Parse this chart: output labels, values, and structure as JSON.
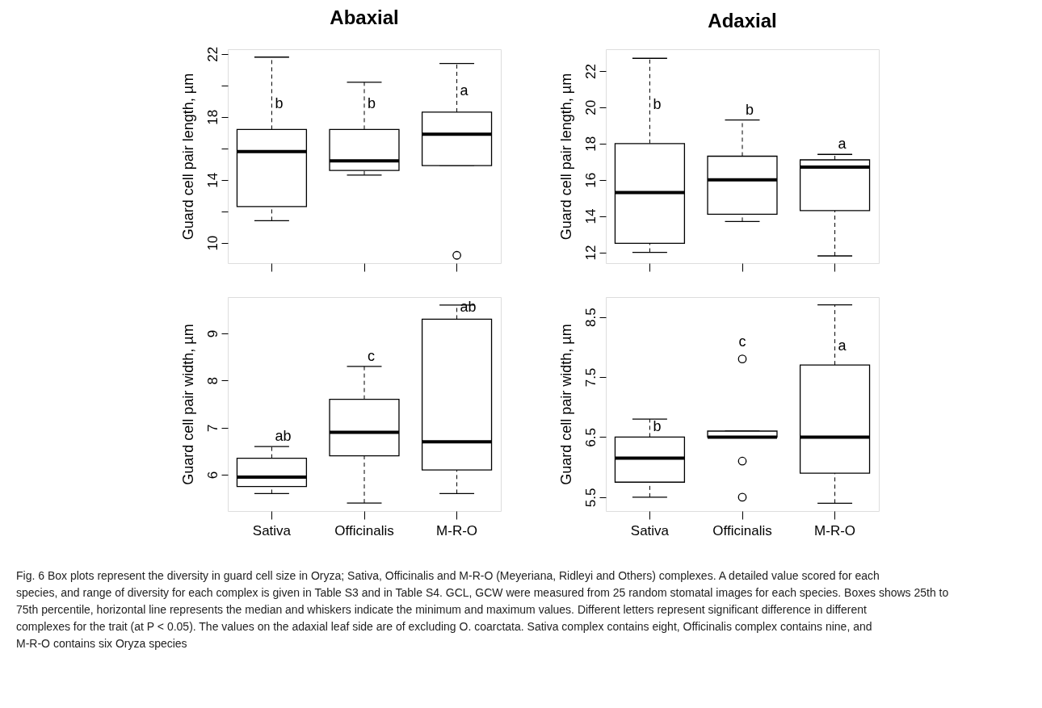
{
  "chart_data": [
    {
      "type": "box",
      "title": "Abaxial",
      "ylabel": "Guard cell pair length, µm",
      "categories": [
        "Sativa",
        "Officinalis",
        "M-R-O"
      ],
      "tick_labels": "y",
      "ylim": [
        8.7,
        22.3
      ],
      "yticks": [
        10,
        {
          "value": 12,
          "label": null
        },
        14,
        {
          "value": 16,
          "label": null
        },
        18,
        {
          "value": 20,
          "label": null
        },
        22
      ],
      "boxes": [
        {
          "low": 11.4,
          "q1": 12.3,
          "median": 15.8,
          "q3": 17.2,
          "high": 21.8
        },
        {
          "low": 14.3,
          "q1": 14.6,
          "median": 15.2,
          "q3": 17.2,
          "high": 20.2
        },
        {
          "low": 14.9,
          "q1": 14.9,
          "median": 16.9,
          "q3": 18.3,
          "high": 21.4,
          "outliers": [
            9.2
          ]
        }
      ],
      "annotations": [
        {
          "text": "b",
          "x": "Sativa",
          "y": 18.2
        },
        {
          "text": "b",
          "x": "Officinalis",
          "y": 18.2
        },
        {
          "text": "a",
          "x": "M-R-O",
          "y": 19.0
        }
      ]
    },
    {
      "type": "box",
      "title": "Adaxial",
      "ylabel": "Guard cell pair length, µm",
      "categories": [
        "Sativa",
        "Officinalis",
        "M-R-O"
      ],
      "tick_labels": "y",
      "ylim": [
        11.4,
        23.2
      ],
      "yticks": [
        12,
        14,
        16,
        18,
        20,
        22
      ],
      "boxes": [
        {
          "low": 12.0,
          "q1": 12.5,
          "median": 15.3,
          "q3": 18.0,
          "high": 22.7
        },
        {
          "low": 13.7,
          "q1": 14.1,
          "median": 16.0,
          "q3": 17.3,
          "high": 19.3
        },
        {
          "low": 11.8,
          "q1": 14.3,
          "median": 16.7,
          "q3": 17.1,
          "high": 17.4
        }
      ],
      "annotations": [
        {
          "text": "b",
          "x": "Sativa",
          "y": 19.6
        },
        {
          "text": "b",
          "x": "Officinalis",
          "y": 19.3
        },
        {
          "text": "a",
          "x": "M-R-O",
          "y": 17.4
        }
      ]
    },
    {
      "type": "box",
      "ylabel": "Guard cell pair width, µm",
      "categories": [
        "Sativa",
        "Officinalis",
        "M-R-O"
      ],
      "ylim": [
        5.23,
        9.77
      ],
      "yticks": [
        6,
        7,
        8,
        9
      ],
      "boxes": [
        {
          "low": 5.6,
          "q1": 5.75,
          "median": 5.95,
          "q3": 6.35,
          "high": 6.6
        },
        {
          "low": 5.4,
          "q1": 6.4,
          "median": 6.9,
          "q3": 7.6,
          "high": 8.3
        },
        {
          "low": 5.6,
          "q1": 6.1,
          "median": 6.7,
          "q3": 9.3,
          "high": 9.6
        }
      ],
      "annotations": [
        {
          "text": "ab",
          "x": "Sativa",
          "y": 6.6
        },
        {
          "text": "c",
          "x": "Officinalis",
          "y": 8.3
        },
        {
          "text": "ab",
          "x": "M-R-O",
          "y": 9.35
        }
      ]
    },
    {
      "type": "box",
      "ylabel": "Guard cell pair width, µm",
      "categories": [
        "Sativa",
        "Officinalis",
        "M-R-O"
      ],
      "ylim": [
        5.27,
        8.83
      ],
      "yticks": [
        5.5,
        6.5,
        7.5,
        8.5
      ],
      "boxes": [
        {
          "low": 5.5,
          "q1": 5.75,
          "median": 6.15,
          "q3": 6.5,
          "high": 6.8
        },
        {
          "low": 6.5,
          "q1": 6.5,
          "median": 6.5,
          "q3": 6.6,
          "high": 6.6,
          "outliers": [
            7.8,
            6.1,
            5.5
          ]
        },
        {
          "low": 5.4,
          "q1": 5.9,
          "median": 6.5,
          "q3": 7.7,
          "high": 8.7
        }
      ],
      "annotations": [
        {
          "text": "b",
          "x": "Sativa",
          "y": 6.5
        },
        "c",
        {
          "text": "a",
          "x": "M-R-O",
          "y": 7.85
        }
      ]
    },
    {
      "type": "other",
      "annotations": [
        "Fig. 6 Box plots represent the diversity in guard cell size in Oryza; Sativa, Officinalis and M-R-O (Meyeriana, Ridleyi and Others) complexes. A detailed value scored for each species, and range of diversity for each complex is given in Table S3 and in Table S4. GCL, GCW were measured from 25 random stomatal images for each species. Boxes shows 25th to 75th percentile, horizontal line represents the median and whiskers indicate the minimum and maximum values. Different letters represent significant difference in different complexes for the trait (at P < 0.05). The values on the adaxial leaf side are of excluding O. coarctata. Sativa complex contains eight, Officinalis complex contains nine, and M-R-O contains six Oryza species"
      ]
    }
  ]
}
